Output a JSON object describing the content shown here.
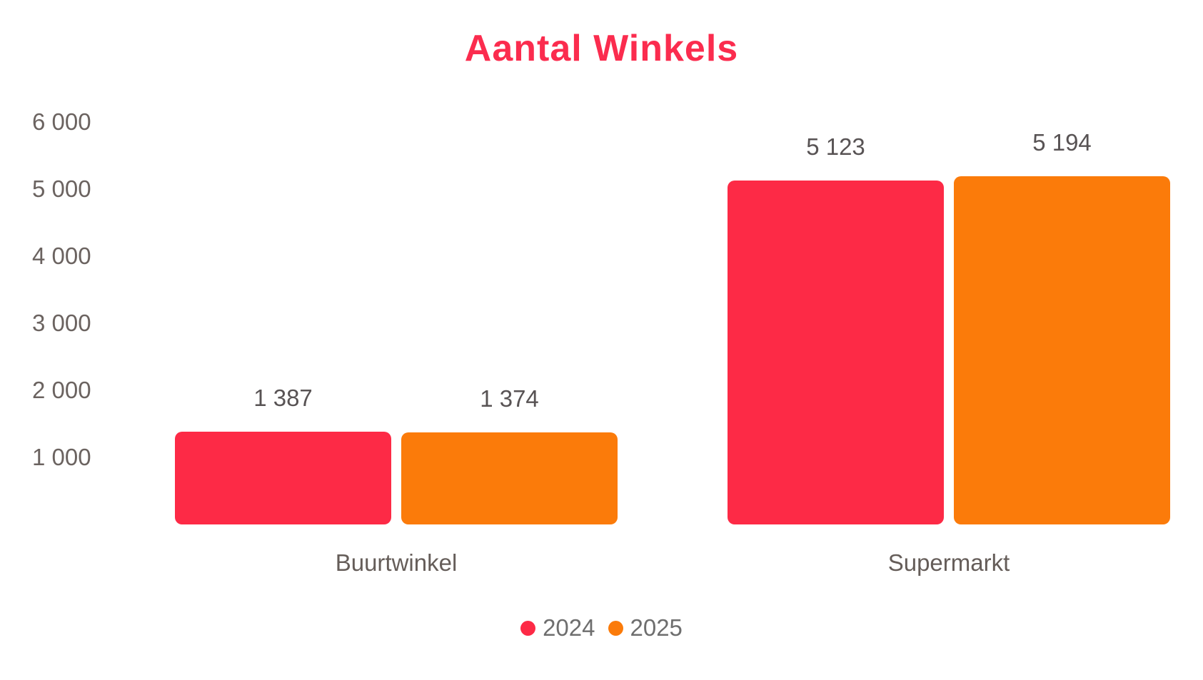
{
  "background_color": "#ffffff",
  "chart_data": {
    "type": "bar",
    "title": "Aantal Winkels",
    "title_color": "#FB2C4E",
    "categories": [
      "Buurtwinkel",
      "Supermarkt"
    ],
    "series": [
      {
        "name": "2024",
        "color": "#FD2A46",
        "values": [
          1387,
          5123
        ],
        "labels": [
          "1 387",
          "5 123"
        ]
      },
      {
        "name": "2025",
        "color": "#FB7B0A",
        "values": [
          1374,
          5194
        ],
        "labels": [
          "1 374",
          "5 194"
        ]
      }
    ],
    "y_ticks": [
      {
        "value": 6000,
        "label": "6 000"
      },
      {
        "value": 5000,
        "label": "5 000"
      },
      {
        "value": 4000,
        "label": "4 000"
      },
      {
        "value": 3000,
        "label": "3 000"
      },
      {
        "value": 2000,
        "label": "2 000"
      },
      {
        "value": 1000,
        "label": "1 000"
      }
    ],
    "ylim": [
      0,
      6000
    ],
    "grid": false,
    "axis_lines": false,
    "legend_position": "bottom",
    "xlabel": "",
    "ylabel": "",
    "axis_tick_color": "#6B6360",
    "category_label_color": "#655D59",
    "value_label_color": "#585354",
    "legend_text_color": "#6E6E6E"
  }
}
